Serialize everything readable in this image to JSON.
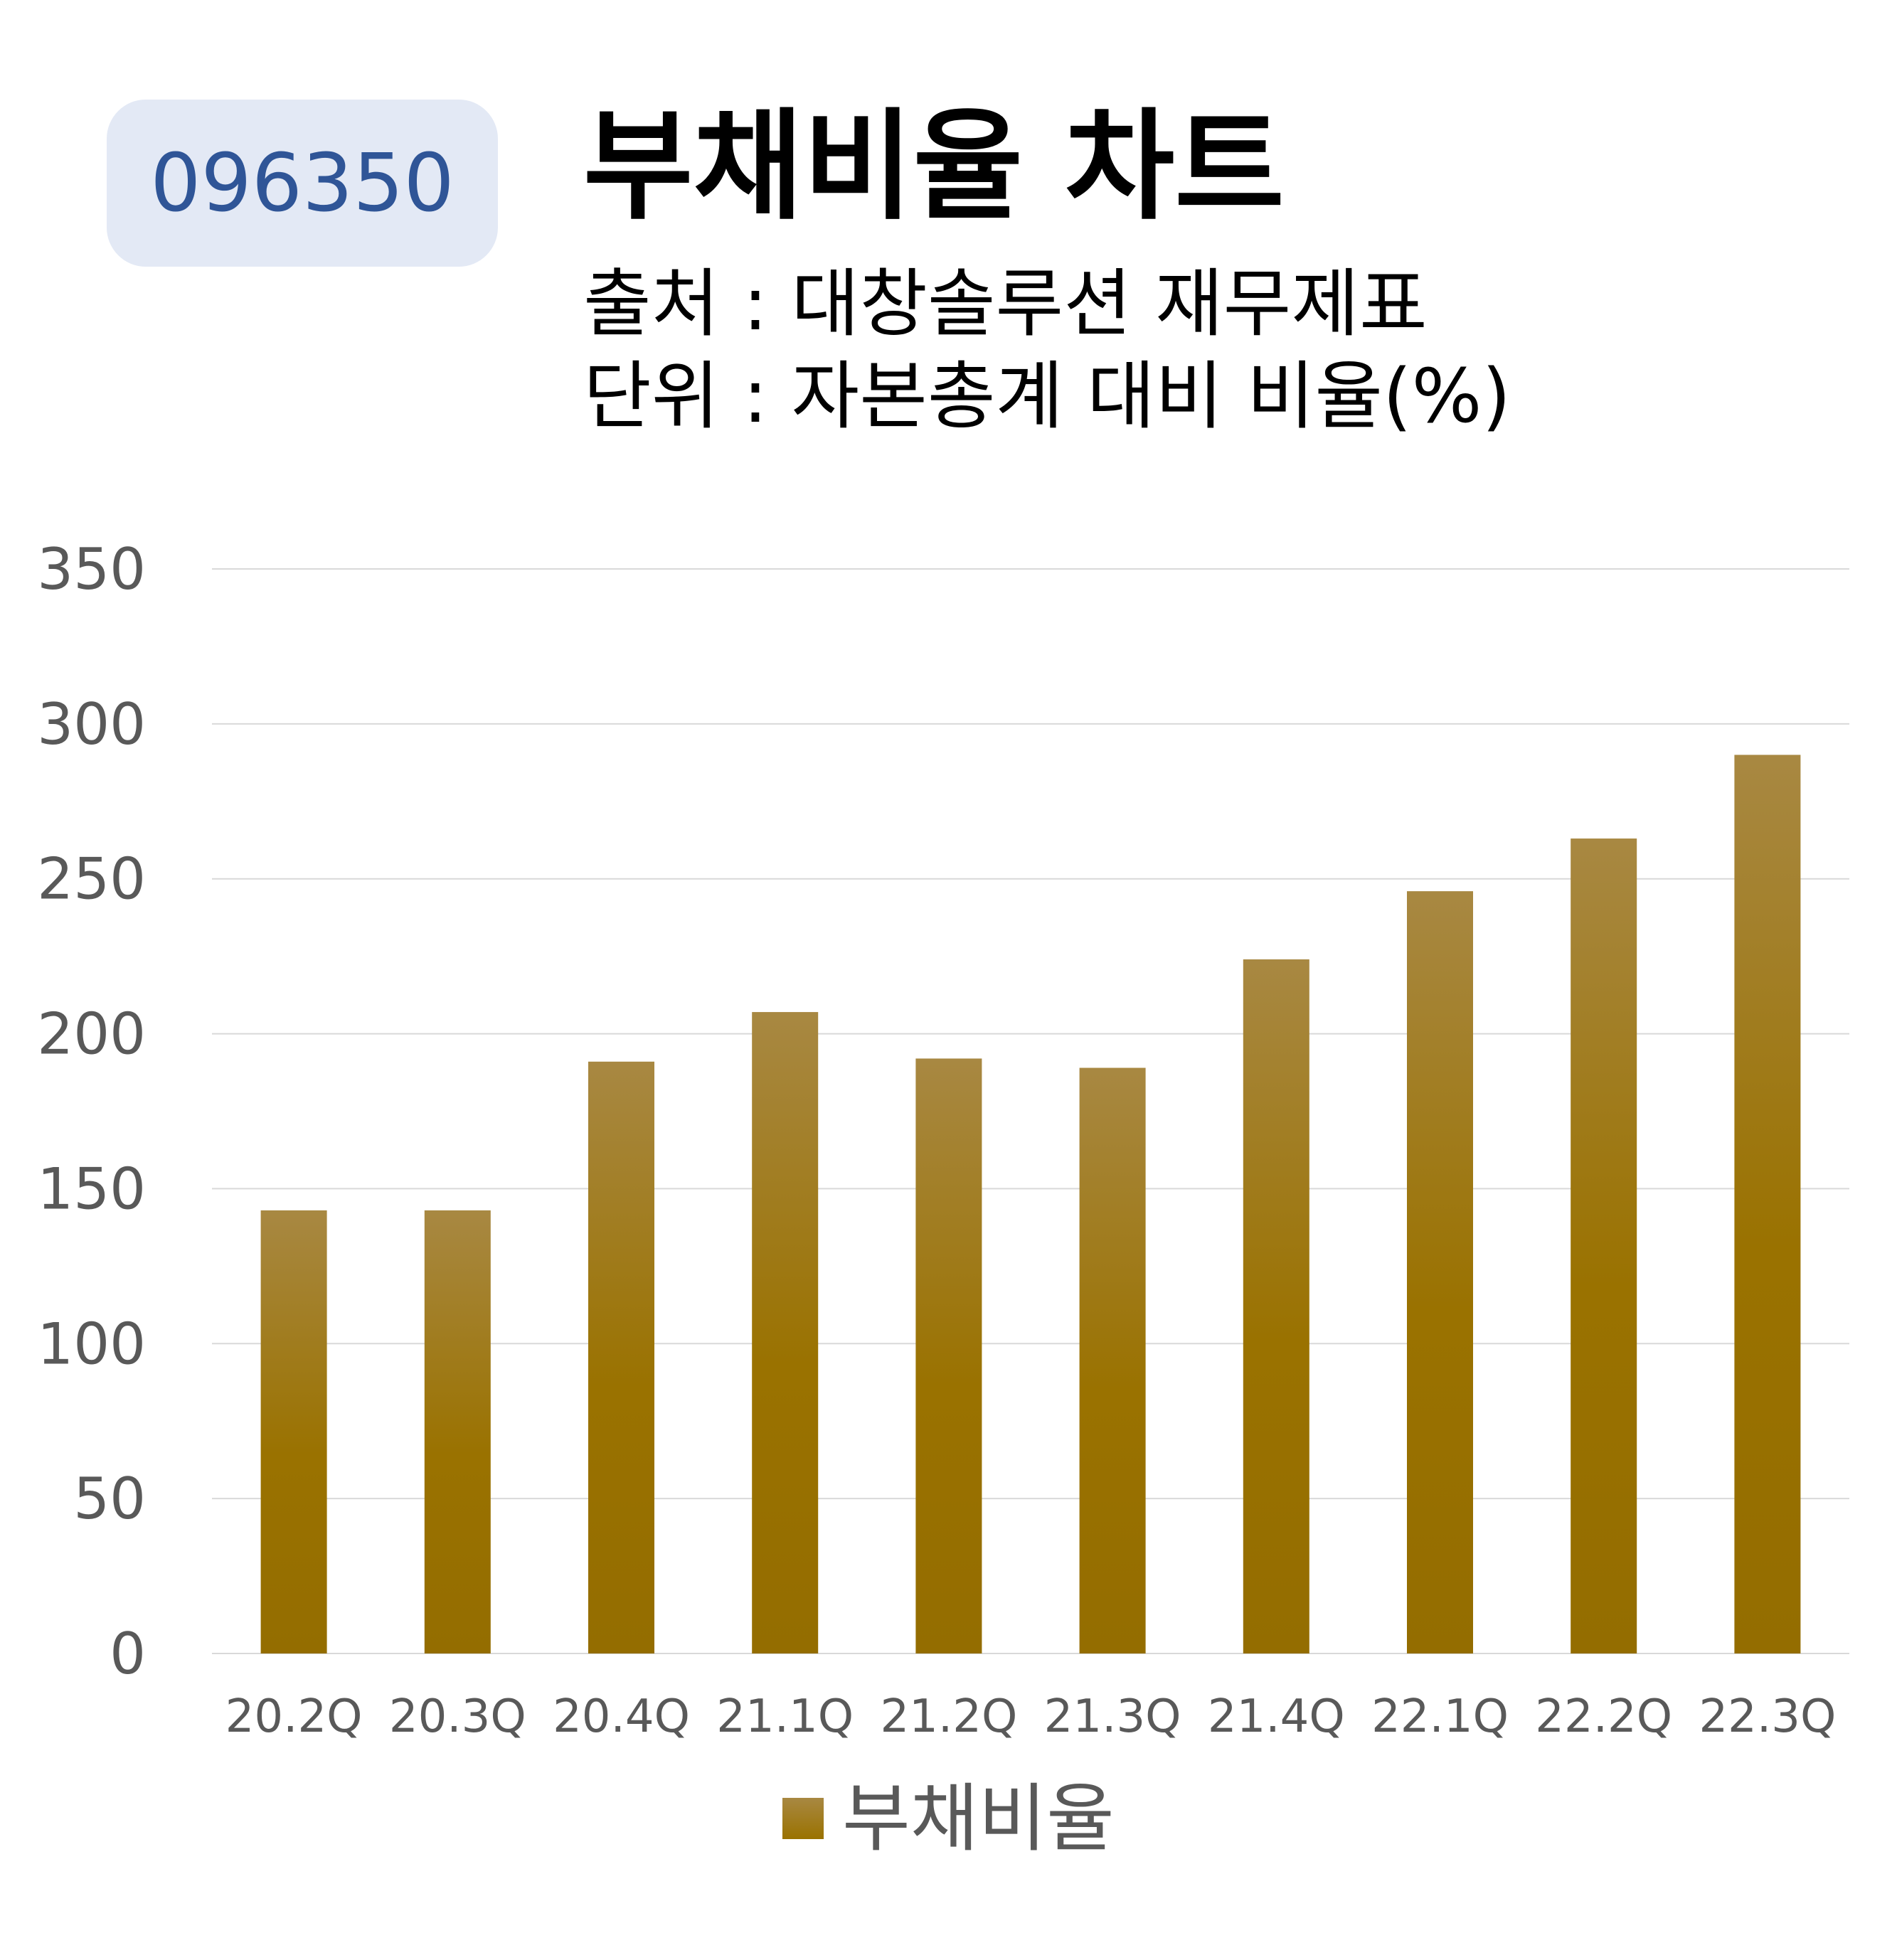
{
  "header": {
    "ticker": "096350",
    "title": "부채비율 차트",
    "source": "출처 : 대창솔루션 재무제표",
    "unit": "단위 : 자본총계 대비 비율(%)"
  },
  "colors": {
    "ticker_badge_bg": "#e3e9f5",
    "ticker_text": "#2f5597",
    "bar_top": "#a88842",
    "bar_bottom": "#9a7200",
    "grid": "#d9d9d9",
    "axis_text": "#595959"
  },
  "chart_data": {
    "type": "bar",
    "categories": [
      "20.2Q",
      "20.3Q",
      "20.4Q",
      "21.1Q",
      "21.2Q",
      "21.3Q",
      "21.4Q",
      "22.1Q",
      "22.2Q",
      "22.3Q"
    ],
    "series": [
      {
        "name": "부채비율",
        "values": [
          143,
          143,
          191,
          207,
          192,
          189,
          224,
          246,
          263,
          290
        ]
      }
    ],
    "ylim": [
      0,
      350
    ],
    "yticks": [
      0,
      50,
      100,
      150,
      200,
      250,
      300,
      350
    ],
    "grid": true,
    "legend_position": "bottom"
  }
}
